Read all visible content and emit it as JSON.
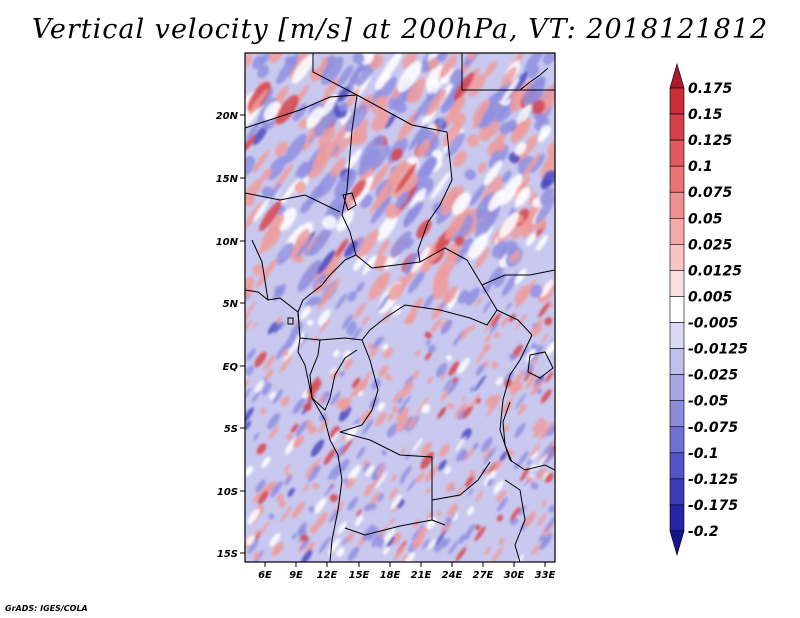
{
  "title": "Vertical velocity [m/s] at 200hPa, VT: 2018121812",
  "footer": "GrADS: IGES/COLA",
  "lat_labels": [
    "20N",
    "15N",
    "10N",
    "5N",
    "EQ",
    "5S",
    "10S",
    "15S"
  ],
  "lon_labels": [
    "6E",
    "9E",
    "12E",
    "15E",
    "18E",
    "21E",
    "24E",
    "27E",
    "30E",
    "33E"
  ],
  "colorbar": {
    "levels": [
      "0.175",
      "0.15",
      "0.125",
      "0.1",
      "0.075",
      "0.05",
      "0.025",
      "0.0125",
      "0.005",
      "-0.005",
      "-0.0125",
      "-0.025",
      "-0.05",
      "-0.075",
      "-0.1",
      "-0.125",
      "-0.175",
      "-0.2"
    ],
    "colors": [
      "#b2182b",
      "#c92e35",
      "#d6404a",
      "#e05a5e",
      "#e87474",
      "#ef9090",
      "#f4aaaa",
      "#f8c4c4",
      "#fbdede",
      "#ffffff",
      "#d9d9f4",
      "#c0c0ec",
      "#a6a6e4",
      "#8c8cdc",
      "#7070d2",
      "#5454c6",
      "#3a3ab8",
      "#2424a6",
      "#14148f"
    ]
  },
  "field_colors": {
    "background": "#c9c9ef",
    "positive": "#ef9c9c",
    "positive_strong": "#d8454a",
    "negative": "#8f8fe0",
    "negative_strong": "#4a4ac2",
    "neutral": "#ffffff"
  }
}
